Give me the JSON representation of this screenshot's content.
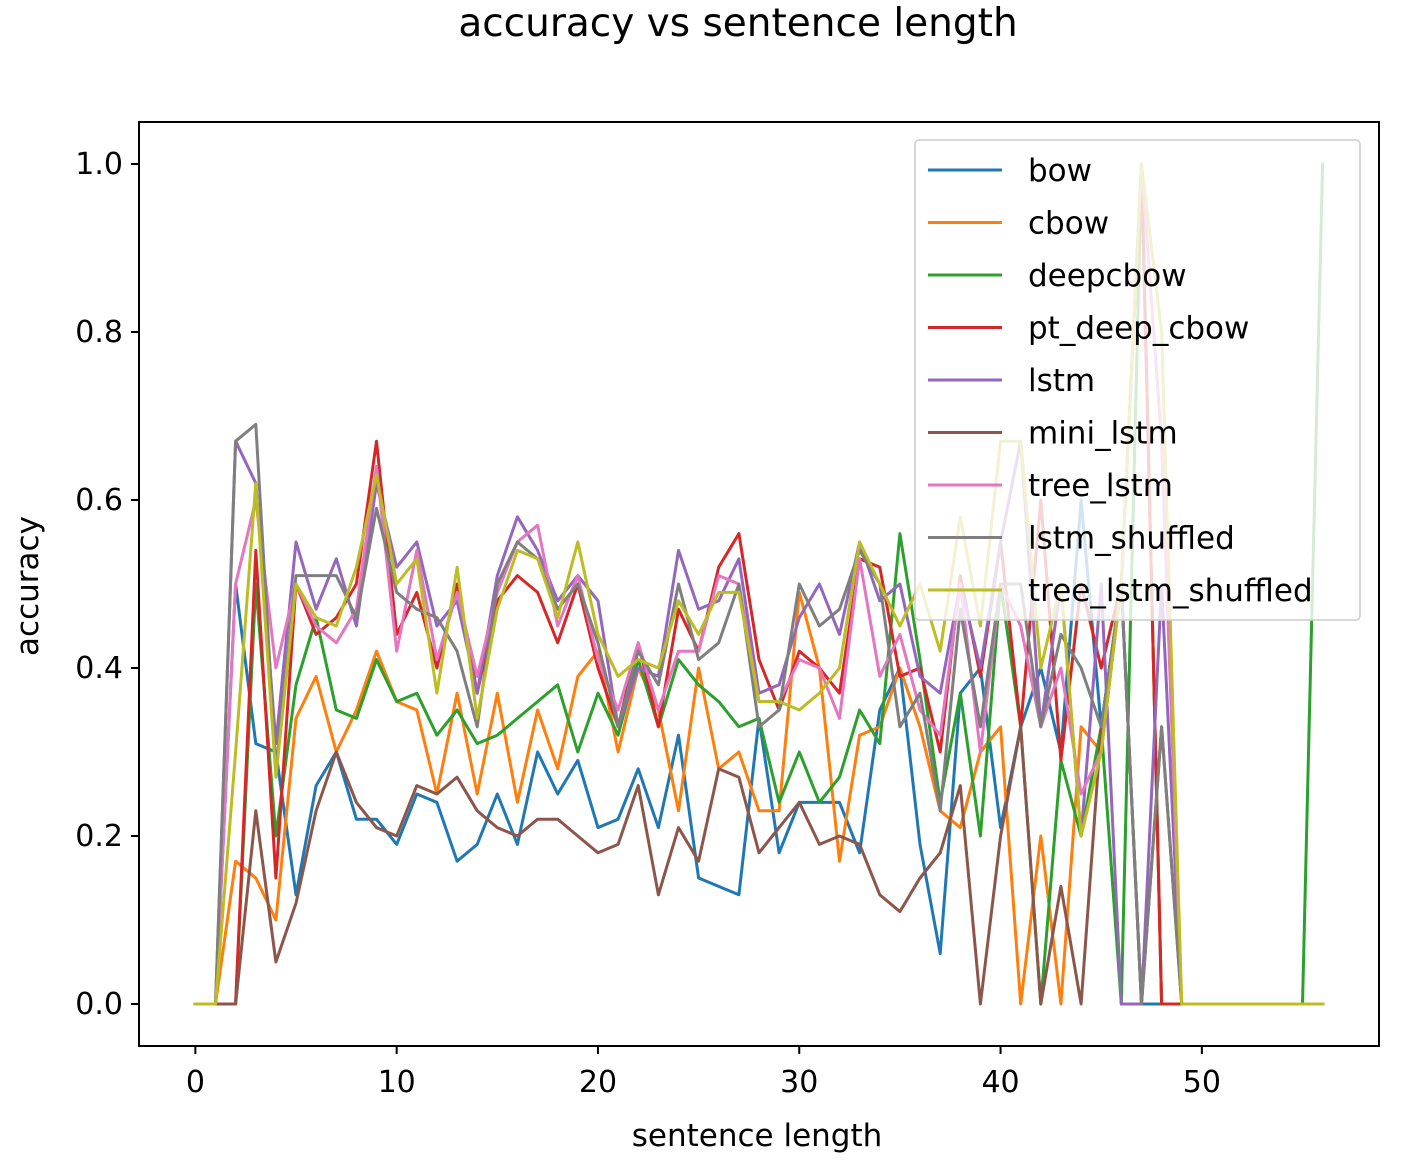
{
  "chart_data": {
    "type": "line",
    "title": "accuracy vs sentence length",
    "xlabel": "sentence length",
    "ylabel": "accuracy",
    "xlim": [
      -2.8,
      58.8
    ],
    "ylim": [
      -0.05,
      1.05
    ],
    "xticks": [
      0,
      10,
      20,
      30,
      40,
      50
    ],
    "yticks": [
      0.0,
      0.2,
      0.4,
      0.6,
      0.8,
      1.0
    ],
    "x_tick_labels": [
      "0",
      "10",
      "20",
      "30",
      "40",
      "50"
    ],
    "y_tick_labels": [
      "0.0",
      "0.2",
      "0.4",
      "0.6",
      "0.8",
      "1.0"
    ],
    "grid": false,
    "legend_position": "top-right",
    "x": [
      0,
      1,
      2,
      3,
      4,
      5,
      6,
      7,
      8,
      9,
      10,
      11,
      12,
      13,
      14,
      15,
      16,
      17,
      18,
      19,
      20,
      21,
      22,
      23,
      24,
      25,
      26,
      27,
      28,
      29,
      30,
      31,
      32,
      33,
      34,
      35,
      36,
      37,
      38,
      39,
      40,
      41,
      42,
      43,
      44,
      45,
      46,
      47,
      48,
      49,
      50,
      51,
      52,
      53,
      54,
      55,
      56
    ],
    "series": [
      {
        "name": "bow",
        "color": "#1f77b4",
        "values": [
          0,
          0,
          0.5,
          0.31,
          0.3,
          0.13,
          0.26,
          0.3,
          0.22,
          0.22,
          0.19,
          0.25,
          0.24,
          0.17,
          0.19,
          0.25,
          0.19,
          0.3,
          0.25,
          0.29,
          0.21,
          0.22,
          0.28,
          0.21,
          0.32,
          0.15,
          0.14,
          0.13,
          0.34,
          0.18,
          0.24,
          0.24,
          0.24,
          0.18,
          0.35,
          0.4,
          0.19,
          0.06,
          0.37,
          0.4,
          0.21,
          0.33,
          0.4,
          0.3,
          0.6,
          0.33,
          0.5,
          0,
          0,
          0,
          0,
          0,
          0,
          0,
          0,
          0,
          0
        ]
      },
      {
        "name": "cbow",
        "color": "#ff7f0e",
        "values": [
          0,
          0,
          0.17,
          0.15,
          0.1,
          0.34,
          0.39,
          0.3,
          0.35,
          0.42,
          0.36,
          0.35,
          0.25,
          0.37,
          0.25,
          0.37,
          0.24,
          0.35,
          0.28,
          0.39,
          0.42,
          0.3,
          0.4,
          0.35,
          0.23,
          0.4,
          0.28,
          0.3,
          0.23,
          0.23,
          0.49,
          0.4,
          0.17,
          0.32,
          0.33,
          0.4,
          0.33,
          0.23,
          0.21,
          0.3,
          0.33,
          0,
          0.2,
          0,
          0.33,
          0.3,
          0.5,
          1.0,
          0,
          0,
          0,
          0,
          0,
          0,
          0,
          0,
          0
        ]
      },
      {
        "name": "deepcbow",
        "color": "#2ca02c",
        "values": [
          0,
          0,
          0,
          0.5,
          0.2,
          0.38,
          0.46,
          0.35,
          0.34,
          0.41,
          0.36,
          0.37,
          0.32,
          0.35,
          0.31,
          0.32,
          0.34,
          0.36,
          0.38,
          0.3,
          0.37,
          0.32,
          0.41,
          0.33,
          0.41,
          0.38,
          0.36,
          0.33,
          0.34,
          0.24,
          0.3,
          0.24,
          0.27,
          0.35,
          0.31,
          0.56,
          0.41,
          0.24,
          0.37,
          0.2,
          0.5,
          0.33,
          0,
          0.29,
          0.2,
          0.33,
          0,
          1.0,
          0,
          0,
          0,
          0,
          0,
          0,
          0,
          0,
          1.0
        ]
      },
      {
        "name": "pt_deep_cbow",
        "color": "#d62728",
        "values": [
          0,
          0,
          0,
          0.54,
          0.15,
          0.5,
          0.44,
          0.46,
          0.5,
          0.67,
          0.44,
          0.49,
          0.4,
          0.5,
          0.37,
          0.48,
          0.51,
          0.49,
          0.43,
          0.5,
          0.4,
          0.33,
          0.43,
          0.33,
          0.47,
          0.42,
          0.52,
          0.56,
          0.41,
          0.35,
          0.42,
          0.4,
          0.37,
          0.53,
          0.52,
          0.39,
          0.4,
          0.3,
          0.51,
          0.39,
          0.55,
          0.33,
          0.6,
          0.29,
          0.5,
          0.4,
          0.5,
          1.0,
          0,
          0,
          0,
          0,
          0,
          0,
          0,
          0,
          0
        ]
      },
      {
        "name": "lstm",
        "color": "#9467bd",
        "values": [
          0,
          0,
          0.67,
          0.62,
          0.31,
          0.55,
          0.47,
          0.53,
          0.45,
          0.62,
          0.52,
          0.55,
          0.45,
          0.48,
          0.37,
          0.51,
          0.58,
          0.54,
          0.48,
          0.51,
          0.48,
          0.33,
          0.4,
          0.39,
          0.54,
          0.47,
          0.48,
          0.53,
          0.37,
          0.38,
          0.46,
          0.5,
          0.44,
          0.55,
          0.48,
          0.5,
          0.39,
          0.37,
          0.5,
          0.4,
          0.55,
          0.67,
          0.33,
          0.5,
          0.2,
          0.5,
          0,
          0,
          0.5,
          0,
          0,
          0,
          0,
          0,
          0,
          0,
          0
        ]
      },
      {
        "name": "mini_lstm",
        "color": "#8c564b",
        "values": [
          0,
          0,
          0,
          0.23,
          0.05,
          0.12,
          0.23,
          0.3,
          0.24,
          0.21,
          0.2,
          0.26,
          0.25,
          0.27,
          0.23,
          0.21,
          0.2,
          0.22,
          0.22,
          0.2,
          0.18,
          0.19,
          0.26,
          0.13,
          0.21,
          0.17,
          0.28,
          0.27,
          0.18,
          0.21,
          0.24,
          0.19,
          0.2,
          0.19,
          0.13,
          0.11,
          0.15,
          0.18,
          0.26,
          0,
          0.2,
          0.33,
          0,
          0.14,
          0,
          0.33,
          0.5,
          0,
          0.33,
          0,
          0,
          0,
          0,
          0,
          0,
          0,
          0
        ]
      },
      {
        "name": "tree_lstm",
        "color": "#e377c2",
        "values": [
          0,
          0,
          0.5,
          0.6,
          0.4,
          0.5,
          0.45,
          0.43,
          0.47,
          0.64,
          0.42,
          0.54,
          0.41,
          0.49,
          0.39,
          0.49,
          0.55,
          0.57,
          0.45,
          0.51,
          0.41,
          0.35,
          0.43,
          0.35,
          0.42,
          0.42,
          0.51,
          0.5,
          0.36,
          0.36,
          0.41,
          0.4,
          0.34,
          0.53,
          0.39,
          0.44,
          0.35,
          0.32,
          0.5,
          0.3,
          0.5,
          0.45,
          0.33,
          0.4,
          0.25,
          0.3,
          0.5,
          1.0,
          0.67,
          0,
          0,
          0,
          0,
          0,
          0,
          0,
          0
        ]
      },
      {
        "name": "lstm_shuffled",
        "color": "#7f7f7f",
        "values": [
          0,
          0,
          0.67,
          0.69,
          0.28,
          0.51,
          0.51,
          0.51,
          0.46,
          0.59,
          0.49,
          0.47,
          0.46,
          0.42,
          0.33,
          0.5,
          0.55,
          0.53,
          0.47,
          0.5,
          0.43,
          0.33,
          0.42,
          0.38,
          0.5,
          0.41,
          0.43,
          0.5,
          0.33,
          0.35,
          0.5,
          0.45,
          0.47,
          0.54,
          0.5,
          0.33,
          0.37,
          0.23,
          0.47,
          0.33,
          0.5,
          0.5,
          0.33,
          0.44,
          0.4,
          0.33,
          0.5,
          0,
          0.33,
          0,
          0,
          0,
          0,
          0,
          0,
          0,
          0
        ]
      },
      {
        "name": "tree_lstm_shuffled",
        "color": "#bcbd22",
        "values": [
          0,
          0,
          0.3,
          0.62,
          0.27,
          0.5,
          0.46,
          0.45,
          0.52,
          0.63,
          0.5,
          0.53,
          0.37,
          0.52,
          0.34,
          0.47,
          0.54,
          0.53,
          0.46,
          0.55,
          0.44,
          0.39,
          0.41,
          0.4,
          0.48,
          0.44,
          0.49,
          0.49,
          0.36,
          0.36,
          0.35,
          0.37,
          0.4,
          0.55,
          0.5,
          0.45,
          0.5,
          0.42,
          0.58,
          0.45,
          0.67,
          0.67,
          0.4,
          0.5,
          0.2,
          0.3,
          0.5,
          1.0,
          0.8,
          0,
          0,
          0,
          0,
          0,
          0,
          0,
          0
        ]
      }
    ]
  }
}
